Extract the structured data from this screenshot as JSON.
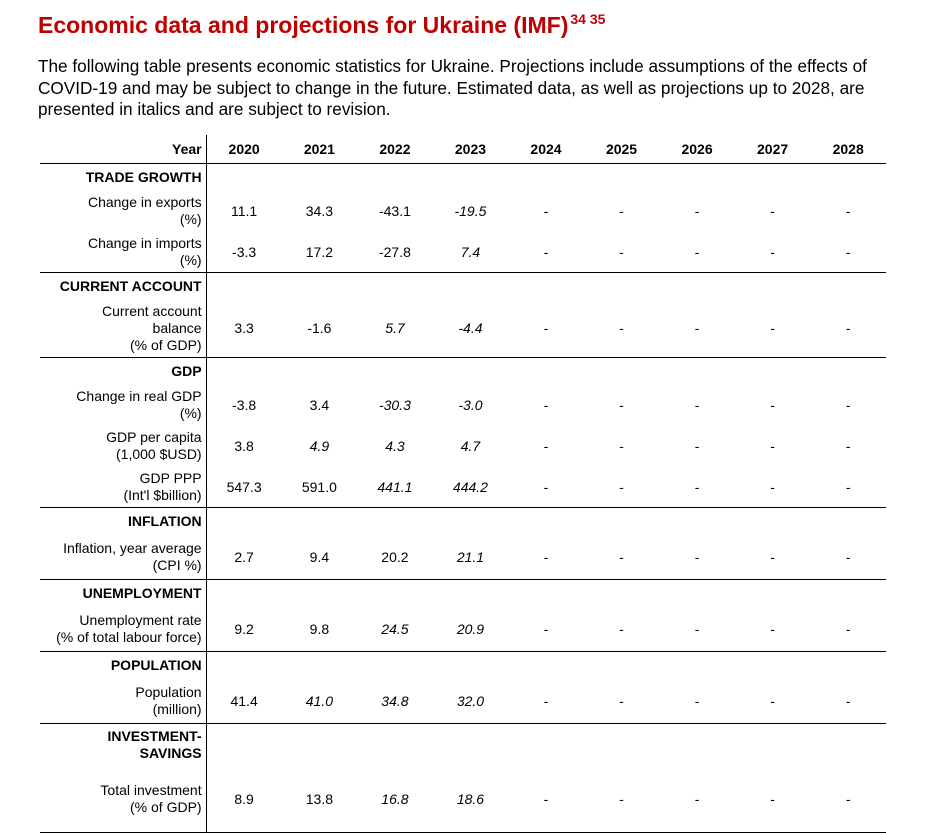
{
  "title": "Economic data and projections for Ukraine (IMF)",
  "title_refs": "34 35",
  "intro": "The following table presents economic statistics for Ukraine. Projections include assumptions of the effects of COVID-19 and may be subject to change in the future. Estimated data, as well as projections up to 2028, are presented in italics and are subject to revision.",
  "table": {
    "year_label": "Year",
    "years": [
      "2020",
      "2021",
      "2022",
      "2023",
      "2024",
      "2025",
      "2026",
      "2027",
      "2028"
    ],
    "sections": [
      {
        "name": "TRADE GROWTH",
        "rows": [
          {
            "l1": "Change in exports",
            "l2": "(%)",
            "values": [
              "11.1",
              "34.3",
              "-43.1",
              "-19.5",
              "-",
              "-",
              "-",
              "-",
              "-"
            ],
            "italic": [
              false,
              false,
              false,
              true,
              false,
              false,
              false,
              false,
              false
            ]
          },
          {
            "l1": "Change in imports",
            "l2": "(%)",
            "values": [
              "-3.3",
              "17.2",
              "-27.8",
              "7.4",
              "-",
              "-",
              "-",
              "-",
              "-"
            ],
            "italic": [
              false,
              false,
              false,
              true,
              false,
              false,
              false,
              false,
              false
            ]
          }
        ]
      },
      {
        "name": "CURRENT ACCOUNT",
        "rows": [
          {
            "l1": "Current account",
            "l2": "balance",
            "l3": "(% of GDP)",
            "values": [
              "3.3",
              "-1.6",
              "5.7",
              "-4.4",
              "-",
              "-",
              "-",
              "-",
              "-"
            ],
            "italic": [
              false,
              false,
              true,
              true,
              false,
              false,
              false,
              false,
              false
            ]
          }
        ]
      },
      {
        "name": "GDP",
        "rows": [
          {
            "l1": "Change in real GDP",
            "l2": "(%)",
            "values": [
              "-3.8",
              "3.4",
              "-30.3",
              "-3.0",
              "-",
              "-",
              "-",
              "-",
              "-"
            ],
            "italic": [
              false,
              false,
              true,
              true,
              false,
              false,
              false,
              false,
              false
            ]
          },
          {
            "l1": "GDP per capita",
            "l2": "(1,000 $USD)",
            "values": [
              "3.8",
              "4.9",
              "4.3",
              "4.7",
              "-",
              "-",
              "-",
              "-",
              "-"
            ],
            "italic": [
              false,
              true,
              true,
              true,
              false,
              false,
              false,
              false,
              false
            ]
          },
          {
            "l1": "GDP PPP",
            "l2": "(Int'l $billion)",
            "values": [
              "547.3",
              "591.0",
              "441.1",
              "444.2",
              "-",
              "-",
              "-",
              "-",
              "-"
            ],
            "italic": [
              false,
              false,
              true,
              true,
              false,
              false,
              false,
              false,
              false
            ]
          }
        ]
      },
      {
        "name": "INFLATION",
        "rows": [
          {
            "l1": "Inflation, year average",
            "l2": "(CPI %)",
            "values": [
              "2.7",
              "9.4",
              "20.2",
              "21.1",
              "-",
              "-",
              "-",
              "-",
              "-"
            ],
            "italic": [
              false,
              false,
              false,
              true,
              false,
              false,
              false,
              false,
              false
            ]
          }
        ]
      },
      {
        "name": "UNEMPLOYMENT",
        "rows": [
          {
            "l1": "Unemployment rate",
            "l2": "(% of total labour force)",
            "values": [
              "9.2",
              "9.8",
              "24.5",
              "20.9",
              "-",
              "-",
              "-",
              "-",
              "-"
            ],
            "italic": [
              false,
              false,
              true,
              true,
              false,
              false,
              false,
              false,
              false
            ]
          }
        ]
      },
      {
        "name": "POPULATION",
        "rows": [
          {
            "l1": "Population",
            "l2": "(million)",
            "values": [
              "41.4",
              "41.0",
              "34.8",
              "32.0",
              "-",
              "-",
              "-",
              "-",
              "-"
            ],
            "italic": [
              false,
              true,
              true,
              true,
              false,
              false,
              false,
              false,
              false
            ]
          }
        ]
      },
      {
        "name": "INVESTMENT-SAVINGS",
        "name_l1": "INVESTMENT-",
        "name_l2": "SAVINGS",
        "rows": [
          {
            "l1": "Total investment",
            "l2": "(% of GDP)",
            "values": [
              "8.9",
              "13.8",
              "16.8",
              "18.6",
              "-",
              "-",
              "-",
              "-",
              "-"
            ],
            "italic": [
              false,
              false,
              true,
              true,
              false,
              false,
              false,
              false,
              false
            ]
          }
        ]
      }
    ]
  }
}
